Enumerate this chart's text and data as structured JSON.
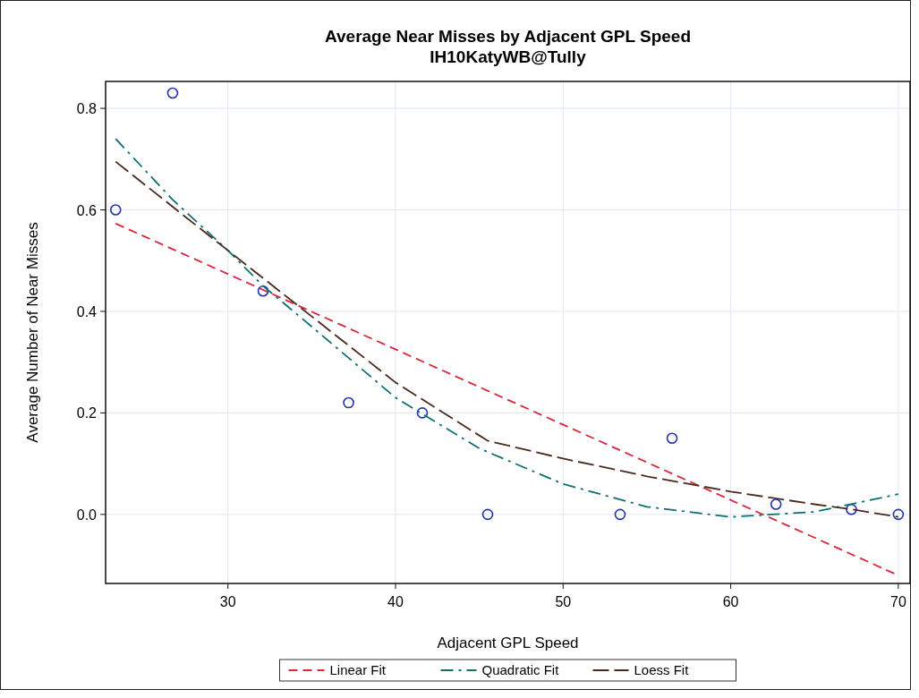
{
  "chart_data": {
    "type": "scatter",
    "title": "Average Near Misses by Adjacent GPL Speed",
    "subtitle": "IH10KatyWB@Tully",
    "xlabel": "Adjacent GPL Speed",
    "ylabel": "Average Number of Near Misses",
    "xlim": [
      22.7,
      70.7
    ],
    "xticks": [
      30,
      40,
      50,
      60,
      70
    ],
    "ylim": [
      -0.136,
      0.853
    ],
    "yticks": [
      {
        "value": 0,
        "label": "0.0"
      },
      {
        "value": 0.2,
        "label": "0.2"
      },
      {
        "value": 0.4,
        "label": "0.4"
      },
      {
        "value": 0.6,
        "label": "0.6"
      },
      {
        "value": 0.8,
        "label": "0.8"
      }
    ],
    "grid": true,
    "legend": "bottom",
    "marker": "circle",
    "series": [
      {
        "color": "#2233aa",
        "x": [
          23.3,
          26.7,
          32.1,
          37.2,
          41.6,
          45.5,
          53.4,
          56.5,
          62.7,
          67.2,
          70
        ],
        "values": [
          0.6,
          0.83,
          0.44,
          0.22,
          0.2,
          0,
          0,
          0.15,
          0.02,
          0.01,
          0
        ]
      },
      {
        "type": "line",
        "name": "Linear Fit",
        "color": "#d7263d",
        "line_style": "dashed",
        "marker": "none",
        "x": [
          23.3,
          70
        ],
        "values": [
          0.573,
          -0.12
        ]
      },
      {
        "type": "line",
        "name": "Quadratic Fit",
        "color": "#0e6f6f",
        "line_style": "dashed",
        "marker": "none",
        "x": [
          23.3,
          26.7,
          30,
          32.1,
          35,
          40,
          45,
          50,
          55,
          60,
          65,
          70
        ],
        "values": [
          0.74,
          0.62,
          0.52,
          0.45,
          0.37,
          0.23,
          0.13,
          0.06,
          0.015,
          -0.005,
          0.005,
          0.04
        ]
      },
      {
        "type": "line",
        "name": "Loess Fit",
        "color": "#4a2a1f",
        "line_style": "dashed",
        "marker": "none",
        "x": [
          23.3,
          30,
          35,
          40,
          45.5,
          50,
          55,
          60,
          65,
          67.2,
          70
        ],
        "values": [
          0.695,
          0.52,
          0.39,
          0.26,
          0.145,
          0.11,
          0.075,
          0.045,
          0.02,
          0.01,
          -0.005
        ]
      }
    ]
  }
}
